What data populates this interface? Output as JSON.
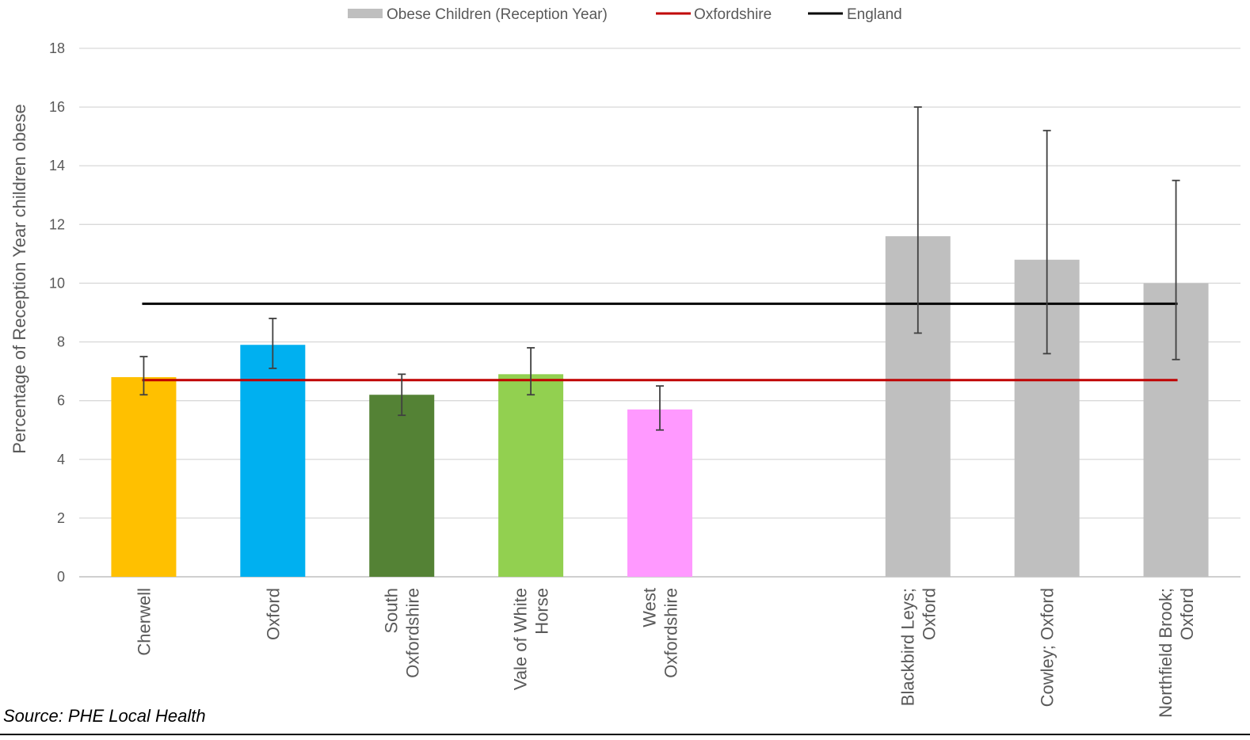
{
  "chart_data": {
    "type": "bar",
    "categories": [
      "Cherwell",
      "Oxford",
      "South Oxfordshire",
      "Vale of White Horse",
      "West Oxfordshire",
      "",
      "Blackbird Leys; Oxford",
      "Cowley; Oxford",
      "Northfield Brook; Oxford"
    ],
    "category_lines": [
      [
        "Cherwell"
      ],
      [
        "Oxford"
      ],
      [
        "South",
        "Oxfordshire"
      ],
      [
        "Vale of White",
        "Horse"
      ],
      [
        "West",
        "Oxfordshire"
      ],
      [],
      [
        "Blackbird Leys;",
        "Oxford"
      ],
      [
        "Cowley; Oxford"
      ],
      [
        "Northfield Brook;",
        "Oxford"
      ]
    ],
    "series": [
      {
        "name": "Obese Children (Reception Year)",
        "type": "bar",
        "values": [
          6.8,
          7.9,
          6.2,
          6.9,
          5.7,
          null,
          11.6,
          10.8,
          10.0
        ],
        "ci_low": [
          6.2,
          7.1,
          5.5,
          6.2,
          5.0,
          null,
          8.3,
          7.6,
          7.4
        ],
        "ci_high": [
          7.5,
          8.8,
          6.9,
          7.8,
          6.5,
          null,
          16.0,
          15.2,
          13.5
        ],
        "colors": [
          "#FFC000",
          "#00B0F0",
          "#548235",
          "#92D050",
          "#FF99FF",
          null,
          "#BFBFBF",
          "#BFBFBF",
          "#BFBFBF"
        ],
        "legend_color": "#BFBFBF"
      },
      {
        "name": "Oxfordshire",
        "type": "line",
        "value": 6.7,
        "color": "#C00000"
      },
      {
        "name": "England",
        "type": "line",
        "value": 9.3,
        "color": "#000000"
      }
    ],
    "ylabel": "Percentage of Reception Year children  obese",
    "xlabel": "",
    "ylim": [
      0,
      18
    ],
    "yticks": [
      0,
      2,
      4,
      6,
      8,
      10,
      12,
      14,
      16,
      18
    ],
    "grid": true,
    "legend_position": "top-center"
  },
  "source_text": "Source: PHE Local Health"
}
